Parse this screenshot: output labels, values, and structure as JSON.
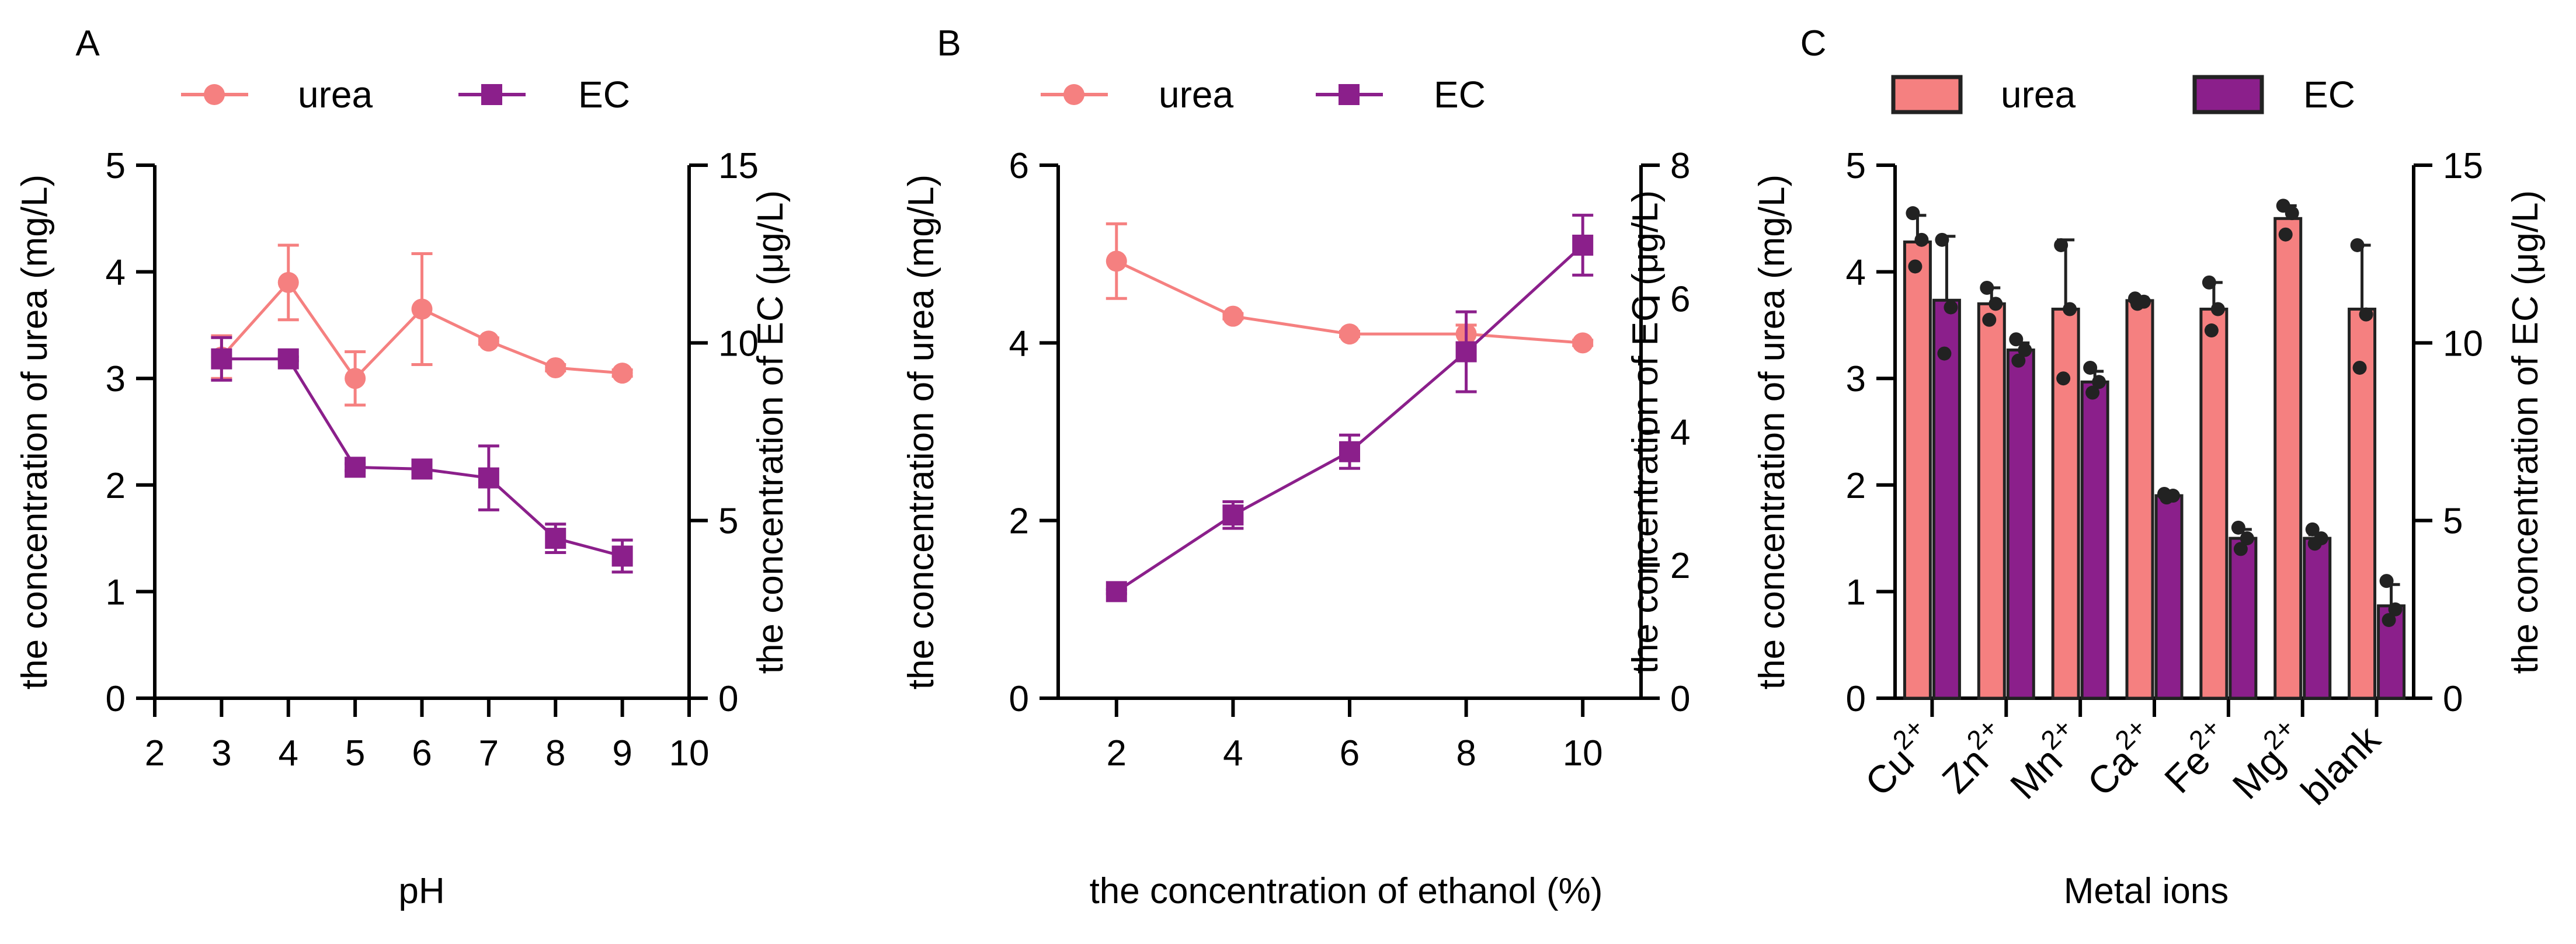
{
  "colors": {
    "urea": "#F58080",
    "ec": "#8B1F8B",
    "axis": "#000000"
  },
  "icons": {
    "urea_marker": "circle",
    "ec_marker": "square"
  },
  "chart_data": [
    {
      "panel": "A",
      "type": "line",
      "legend": [
        "urea",
        "EC"
      ],
      "xlabel": "pH",
      "ylabel_left": "the concentration of urea (mg/L)",
      "ylabel_right": "the concentration of EC (μg/L)",
      "xlim": [
        2,
        10
      ],
      "xticks": [
        "2",
        "3",
        "4",
        "5",
        "6",
        "7",
        "8",
        "9",
        "10"
      ],
      "ylim_left": [
        0,
        5
      ],
      "yticks_left": [
        "0",
        "1",
        "2",
        "3",
        "4",
        "5"
      ],
      "ylim_right": [
        0,
        15
      ],
      "yticks_right": [
        "0",
        "5",
        "10",
        "15"
      ],
      "series": [
        {
          "name": "urea",
          "axis": "left",
          "x": [
            3,
            4,
            5,
            6,
            7,
            8,
            9
          ],
          "y": [
            3.2,
            3.9,
            3.0,
            3.65,
            3.35,
            3.1,
            3.05
          ],
          "err": [
            0.2,
            0.35,
            0.25,
            0.52,
            0.03,
            0.03,
            0.03
          ]
        },
        {
          "name": "EC",
          "axis": "right",
          "x": [
            3,
            4,
            5,
            6,
            7,
            8,
            9
          ],
          "y": [
            9.55,
            9.55,
            6.5,
            6.45,
            6.2,
            4.5,
            4.0
          ],
          "err": [
            0.6,
            0.05,
            0.1,
            0.1,
            0.9,
            0.4,
            0.45
          ]
        }
      ]
    },
    {
      "panel": "B",
      "type": "line",
      "legend": [
        "urea",
        "EC"
      ],
      "xlabel": "the concentration of ethanol (%)",
      "ylabel_left": "the concentration of urea (mg/L)",
      "ylabel_right": "the concentration of EC (μg/L)",
      "xlim": [
        1,
        11
      ],
      "xticks": [
        "2",
        "4",
        "6",
        "8",
        "10"
      ],
      "ylim_left": [
        0,
        6
      ],
      "yticks_left": [
        "0",
        "2",
        "4",
        "6"
      ],
      "ylim_right": [
        0,
        8
      ],
      "yticks_right": [
        "0",
        "2",
        "4",
        "6",
        "8"
      ],
      "series": [
        {
          "name": "urea",
          "axis": "left",
          "x": [
            2,
            4,
            6,
            8,
            10
          ],
          "y": [
            4.92,
            4.3,
            4.1,
            4.1,
            4.0
          ],
          "err": [
            0.42,
            0.03,
            0.03,
            0.1,
            0.03
          ]
        },
        {
          "name": "EC",
          "axis": "right",
          "x": [
            2,
            4,
            6,
            8,
            10
          ],
          "y": [
            1.6,
            2.75,
            3.7,
            5.2,
            6.8
          ],
          "err": [
            0.03,
            0.2,
            0.25,
            0.6,
            0.45
          ]
        }
      ]
    },
    {
      "panel": "C",
      "type": "bar",
      "legend": [
        "urea",
        "EC"
      ],
      "xlabel": "Metal ions",
      "ylabel_left": "the concentration of urea (mg/L)",
      "ylabel_right": "the concentration of EC (μg/L)",
      "categories": [
        {
          "base": "Cu",
          "sup": "2+"
        },
        {
          "base": "Zn",
          "sup": "2+"
        },
        {
          "base": "Mn",
          "sup": "2+"
        },
        {
          "base": "Ca",
          "sup": "2+"
        },
        {
          "base": "Fe",
          "sup": "2+"
        },
        {
          "base": "Mg",
          "sup": "2+"
        },
        {
          "base": "blank",
          "sup": ""
        }
      ],
      "ylim_left": [
        0,
        5
      ],
      "yticks_left": [
        "0",
        "1",
        "2",
        "3",
        "4",
        "5"
      ],
      "ylim_right": [
        0,
        15
      ],
      "yticks_right": [
        "0",
        "5",
        "10",
        "15"
      ],
      "series": [
        {
          "name": "urea",
          "axis": "left",
          "values": [
            4.28,
            3.7,
            3.65,
            3.73,
            3.65,
            4.5,
            3.65
          ],
          "err": [
            0.25,
            0.15,
            0.65,
            0.03,
            0.25,
            0.12,
            0.6
          ],
          "points": [
            [
              4.55,
              4.3,
              4.05
            ],
            [
              3.85,
              3.7,
              3.55
            ],
            [
              4.25,
              3.65,
              3.0
            ],
            [
              3.75,
              3.72,
              3.7
            ],
            [
              3.9,
              3.65,
              3.45
            ],
            [
              4.62,
              4.55,
              4.35
            ],
            [
              4.25,
              3.6,
              3.1
            ]
          ]
        },
        {
          "name": "EC",
          "axis": "right",
          "values": [
            11.2,
            9.8,
            8.9,
            5.7,
            4.5,
            4.5,
            2.6
          ],
          "err": [
            1.8,
            0.2,
            0.3,
            0.05,
            0.25,
            0.1,
            0.6
          ],
          "points": [
            [
              12.9,
              11.0,
              9.7
            ],
            [
              10.1,
              9.8,
              9.5
            ],
            [
              9.3,
              8.9,
              8.6
            ],
            [
              5.75,
              5.7,
              5.65
            ],
            [
              4.8,
              4.5,
              4.2
            ],
            [
              4.75,
              4.5,
              4.35
            ],
            [
              3.3,
              2.5,
              2.2
            ]
          ]
        }
      ]
    }
  ]
}
